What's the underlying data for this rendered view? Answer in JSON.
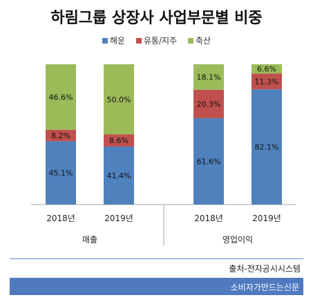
{
  "title": "하림그룹 상장사 사업부문별 비중",
  "source": "출처-전자공시시스템",
  "footer": "소비자가만드는신문",
  "chart_data": {
    "type": "bar",
    "stacked": true,
    "percent": true,
    "legend_position": "top",
    "ylim": [
      0,
      100
    ],
    "grid": false,
    "groups": [
      {
        "label": "매출",
        "categories": [
          "2018년",
          "2019년"
        ]
      },
      {
        "label": "영업이익",
        "categories": [
          "2018년",
          "2019년"
        ]
      }
    ],
    "categories": [
      "2018년",
      "2019년",
      "2018년",
      "2019년"
    ],
    "series": [
      {
        "name": "해운",
        "color": "#4f81bd",
        "values": [
          45.1,
          41.4,
          61.6,
          82.1
        ],
        "labels": [
          "45.1%",
          "41.4%",
          "61.6%",
          "82.1%"
        ]
      },
      {
        "name": "유통/지주",
        "color": "#c0504d",
        "values": [
          8.2,
          8.6,
          20.3,
          11.3
        ],
        "labels": [
          "8.2%",
          "8.6%",
          "20.3%",
          "11.3%"
        ]
      },
      {
        "name": "축산",
        "color": "#9bbb59",
        "values": [
          46.6,
          50.0,
          18.1,
          6.6
        ],
        "labels": [
          "46.6%",
          "50.0%",
          "18.1%",
          "6.6%"
        ]
      }
    ]
  }
}
